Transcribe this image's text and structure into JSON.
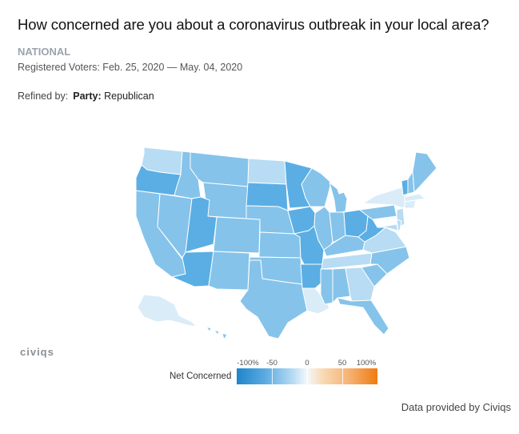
{
  "header": {
    "title": "How concerned are you about a coronavirus outbreak in your local area?",
    "scope": "NATIONAL",
    "dates": "Registered Voters: Feb. 25, 2020 — May. 04, 2020",
    "refined_prefix": "Refined by:",
    "refined_key": "Party:",
    "refined_value": "Republican"
  },
  "logo": "civiqs",
  "legend": {
    "label": "Net Concerned",
    "ticks": [
      "-100%",
      "-50",
      "0",
      "50",
      "100%"
    ],
    "colors": [
      "#1f85cc",
      "#5aaae0",
      "#b8dbf3",
      "#f4f8fb",
      "#f9dcb9",
      "#f5b272",
      "#f07b10"
    ]
  },
  "footer": {
    "credit": "Data provided by Civiqs"
  },
  "map_data": {
    "palette": {
      "deep": "#5aaee4",
      "mid": "#85c3ea",
      "light": "#b7dcf3",
      "pale": "#d9ecf8",
      "border": "#ffffff"
    },
    "regions": [
      {
        "name": "Washington",
        "shade": "light"
      },
      {
        "name": "Oregon",
        "shade": "deep"
      },
      {
        "name": "California",
        "shade": "mid"
      },
      {
        "name": "Nevada",
        "shade": "mid"
      },
      {
        "name": "Idaho",
        "shade": "mid"
      },
      {
        "name": "Montana",
        "shade": "mid"
      },
      {
        "name": "Wyoming",
        "shade": "mid"
      },
      {
        "name": "Utah",
        "shade": "deep"
      },
      {
        "name": "Colorado",
        "shade": "mid"
      },
      {
        "name": "Arizona",
        "shade": "deep"
      },
      {
        "name": "New Mexico",
        "shade": "mid"
      },
      {
        "name": "North Dakota",
        "shade": "light"
      },
      {
        "name": "South Dakota",
        "shade": "deep"
      },
      {
        "name": "Nebraska",
        "shade": "mid"
      },
      {
        "name": "Kansas",
        "shade": "mid"
      },
      {
        "name": "Oklahoma",
        "shade": "mid"
      },
      {
        "name": "Texas",
        "shade": "mid"
      },
      {
        "name": "Minnesota",
        "shade": "deep"
      },
      {
        "name": "Iowa",
        "shade": "deep"
      },
      {
        "name": "Missouri",
        "shade": "deep"
      },
      {
        "name": "Arkansas",
        "shade": "deep"
      },
      {
        "name": "Louisiana",
        "shade": "pale"
      },
      {
        "name": "Wisconsin",
        "shade": "mid"
      },
      {
        "name": "Illinois",
        "shade": "mid"
      },
      {
        "name": "Michigan",
        "shade": "mid"
      },
      {
        "name": "Indiana",
        "shade": "mid"
      },
      {
        "name": "Ohio",
        "shade": "deep"
      },
      {
        "name": "Kentucky",
        "shade": "mid"
      },
      {
        "name": "Tennessee",
        "shade": "light"
      },
      {
        "name": "Mississippi",
        "shade": "mid"
      },
      {
        "name": "Alabama",
        "shade": "mid"
      },
      {
        "name": "Georgia",
        "shade": "light"
      },
      {
        "name": "Florida",
        "shade": "mid"
      },
      {
        "name": "South Carolina",
        "shade": "mid"
      },
      {
        "name": "North Carolina",
        "shade": "mid"
      },
      {
        "name": "Virginia",
        "shade": "light"
      },
      {
        "name": "West Virginia",
        "shade": "deep"
      },
      {
        "name": "Pennsylvania",
        "shade": "mid"
      },
      {
        "name": "New York",
        "shade": "pale"
      },
      {
        "name": "Vermont",
        "shade": "deep"
      },
      {
        "name": "New Hampshire",
        "shade": "mid"
      },
      {
        "name": "Maine",
        "shade": "mid"
      },
      {
        "name": "Massachusetts",
        "shade": "pale"
      },
      {
        "name": "Connecticut",
        "shade": "pale"
      },
      {
        "name": "New Jersey",
        "shade": "light"
      },
      {
        "name": "Maryland",
        "shade": "light"
      },
      {
        "name": "Delaware",
        "shade": "light"
      },
      {
        "name": "Alaska",
        "shade": "pale"
      },
      {
        "name": "Hawaii",
        "shade": "mid"
      }
    ]
  }
}
